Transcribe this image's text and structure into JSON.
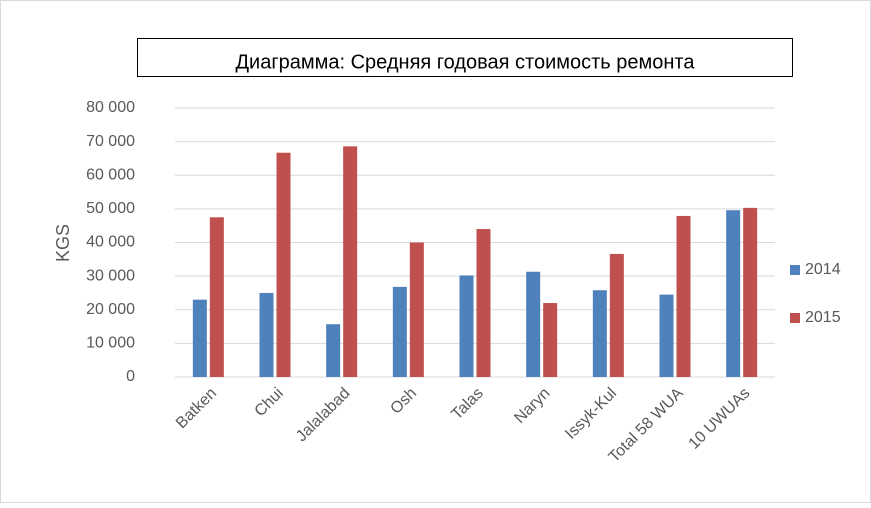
{
  "chart_data": {
    "type": "bar",
    "title": "Диаграмма: Средняя годовая стоимость ремонта",
    "y_label": "KGS",
    "categories": [
      "Batken",
      "Chui",
      "Jalalabad",
      "Osh",
      "Talas",
      "Naryn",
      "Issyk-Kul",
      "Total 58 WUA",
      "10 UWUAs"
    ],
    "series": [
      {
        "name": "2014",
        "color": "#4f81bd",
        "values": [
          23000,
          25000,
          15700,
          26800,
          30200,
          31300,
          25800,
          24500,
          49600
        ]
      },
      {
        "name": "2015",
        "color": "#c0504d",
        "values": [
          47500,
          66700,
          68600,
          40000,
          44000,
          22000,
          36600,
          47900,
          50300
        ]
      }
    ],
    "ylim": [
      0,
      80000
    ],
    "yticks": [
      0,
      {
        "value": 10000,
        "label": "10 000"
      },
      {
        "value": 20000,
        "label": "20 000"
      },
      {
        "value": 30000,
        "label": "30 000"
      },
      {
        "value": 40000,
        "label": "40 000"
      },
      {
        "value": 50000,
        "label": "50 000"
      },
      {
        "value": 60000,
        "label": "60 000"
      },
      {
        "value": 70000,
        "label": "70 000"
      },
      {
        "value": 80000,
        "label": "80 000"
      }
    ],
    "grid": true,
    "legend": "right"
  }
}
